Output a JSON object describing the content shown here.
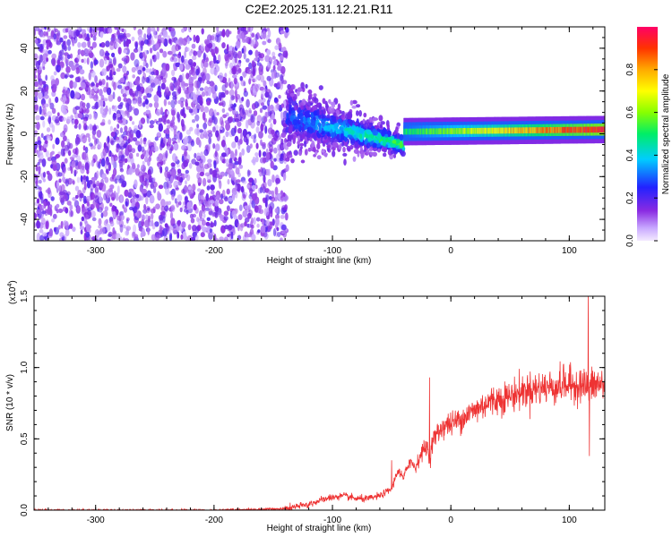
{
  "title": "C2E2.2025.131.12.21.R11",
  "chart_data": [
    {
      "type": "heatmap",
      "xlabel": "Height of straight line (km)",
      "ylabel": "Frequency (Hz)",
      "xlim": [
        -352,
        130
      ],
      "ylim": [
        -50,
        50
      ],
      "xticks": [
        -300,
        -200,
        -100,
        0,
        100
      ],
      "yticks": [
        -40,
        -20,
        0,
        20,
        40
      ],
      "colorbar": {
        "label": "Normalized spectral amplitude",
        "range": [
          0,
          1
        ],
        "ticks": [
          0.0,
          0.2,
          0.4,
          0.6,
          0.8
        ],
        "tick_labels": [
          "0.0",
          "0.2",
          "0.4",
          "0.6",
          "0.8"
        ]
      },
      "regions": [
        {
          "x": [
            -352,
            -138
          ],
          "freq_span": [
            -50,
            50
          ],
          "amplitude": [
            0.05,
            0.2
          ]
        },
        {
          "x": [
            -138,
            -40
          ],
          "freq_center": [
            8,
            -5
          ],
          "freq_halfwidth": [
            10,
            3
          ],
          "amplitude": [
            0.2,
            0.5
          ]
        },
        {
          "x": [
            -40,
            130
          ],
          "freq_center": [
            1,
            2
          ],
          "freq_halfwidth": [
            2,
            2
          ],
          "amplitude": [
            0.5,
            1.0
          ]
        }
      ]
    },
    {
      "type": "line",
      "xlabel": "Height of straight line (km)",
      "ylabel": "SNR (10 * v/v)",
      "ylabel_scale": "(x10",
      "ylabel_scale_exp": "4",
      "ylabel_scale_close": ")",
      "xlim": [
        -352,
        130
      ],
      "ylim": [
        0,
        1.5
      ],
      "xticks": [
        -300,
        -200,
        -100,
        0,
        100
      ],
      "yticks": [
        0.0,
        0.5,
        1.0,
        1.5
      ],
      "ytick_labels": [
        "0.0",
        "0.5",
        "1.0",
        "1.5"
      ],
      "color": "#ee3333",
      "series": [
        {
          "x": [
            -352,
            -200,
            -140,
            -120,
            -110,
            -100,
            -90,
            -80,
            -70,
            -60,
            -50,
            -45,
            -40,
            -35,
            -30,
            -25,
            -20,
            -18,
            -15,
            -10,
            -5,
            0,
            10,
            20,
            30,
            40,
            50,
            60,
            70,
            80,
            90,
            100,
            110,
            115,
            118,
            120,
            125,
            130
          ],
          "values": [
            0.0,
            0.0,
            0.01,
            0.04,
            0.07,
            0.09,
            0.1,
            0.08,
            0.08,
            0.1,
            0.15,
            0.28,
            0.22,
            0.35,
            0.3,
            0.4,
            0.45,
            0.35,
            0.5,
            0.55,
            0.6,
            0.6,
            0.65,
            0.7,
            0.75,
            0.78,
            0.8,
            0.83,
            0.85,
            0.86,
            0.87,
            0.88,
            0.88,
            0.87,
            0.86,
            0.88,
            0.88,
            0.88
          ]
        }
      ],
      "spikes": [
        {
          "x": -50,
          "value": 0.35
        },
        {
          "x": -18,
          "value": 0.93
        },
        {
          "x": 95,
          "value": 1.02
        },
        {
          "x": 116,
          "value": 1.53
        },
        {
          "x": 117,
          "value": 0.38
        }
      ]
    }
  ]
}
